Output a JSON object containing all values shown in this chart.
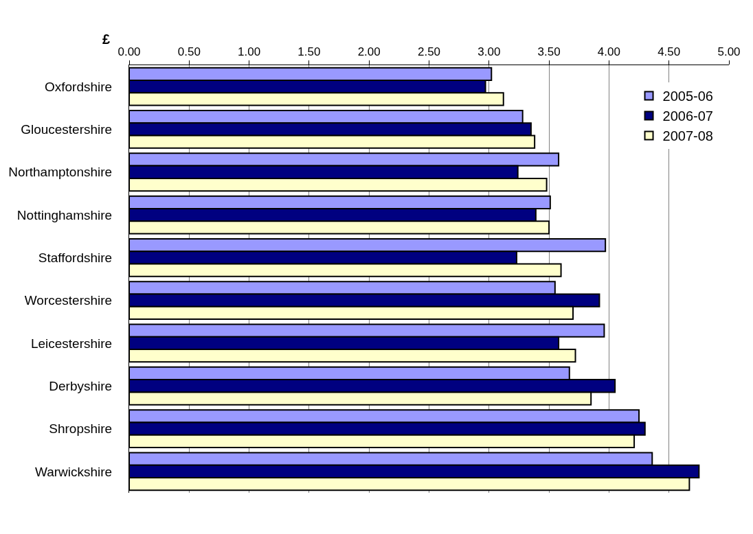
{
  "chart_data": {
    "type": "bar",
    "orientation": "horizontal",
    "xlabel": "£",
    "categories": [
      "Oxfordshire",
      "Gloucestershire",
      "Northamptonshire",
      "Nottinghamshire",
      "Staffordshire",
      "Worcestershire",
      "Leicestershire",
      "Derbyshire",
      "Shropshire",
      "Warwickshire"
    ],
    "series": [
      {
        "name": "2005-06",
        "color": "#9999ff",
        "values": [
          3.02,
          3.28,
          3.58,
          3.51,
          3.97,
          3.55,
          3.96,
          3.67,
          4.25,
          4.36
        ]
      },
      {
        "name": "2006-07",
        "color": "#000080",
        "values": [
          2.97,
          3.35,
          3.24,
          3.39,
          3.23,
          3.92,
          3.58,
          4.05,
          4.3,
          4.75
        ]
      },
      {
        "name": "2007-08",
        "color": "#ffffcc",
        "values": [
          3.12,
          3.38,
          3.48,
          3.5,
          3.6,
          3.7,
          3.72,
          3.85,
          4.21,
          4.67
        ]
      }
    ],
    "xlim": [
      0,
      5
    ],
    "xticks": [
      {
        "value": 0,
        "label": "0.00"
      },
      {
        "value": 0.5,
        "label": "0.50"
      },
      {
        "value": 1,
        "label": "1.00"
      },
      {
        "value": 1.5,
        "label": "1.50"
      },
      {
        "value": 2,
        "label": "2.00"
      },
      {
        "value": 2.5,
        "label": "2.50"
      },
      {
        "value": 3,
        "label": "3.00"
      },
      {
        "value": 3.5,
        "label": "3.50"
      },
      {
        "value": 4,
        "label": "4.00"
      },
      {
        "value": 4.5,
        "label": "4.50"
      },
      {
        "value": 5,
        "label": "5.00"
      }
    ],
    "grid": "x",
    "legend": "top right"
  }
}
